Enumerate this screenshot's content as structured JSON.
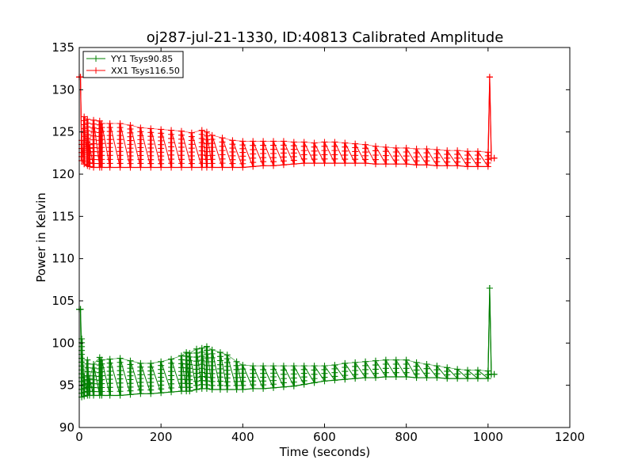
{
  "chart_data": {
    "type": "line",
    "title": "oj287-jul-21-1330, ID:40813 Calibrated Amplitude",
    "xlabel": "Time (seconds)",
    "ylabel": "Power in Kelvin",
    "xlim": [
      0,
      1200
    ],
    "ylim": [
      90,
      135
    ],
    "xticks": [
      "0",
      "200",
      "400",
      "600",
      "800",
      "1000",
      "1200"
    ],
    "yticks": [
      "90",
      "95",
      "100",
      "105",
      "110",
      "115",
      "120",
      "125",
      "130",
      "135"
    ],
    "grid": false,
    "legend_position": "top-left",
    "marker": "+",
    "series": [
      {
        "name": "YY1 Tsys90.85",
        "color": "#008000",
        "x": [
          0,
          3,
          6,
          12,
          20,
          25,
          35,
          50,
          55,
          75,
          100,
          125,
          150,
          175,
          200,
          225,
          250,
          262,
          270,
          287,
          300,
          312,
          325,
          345,
          362,
          385,
          400,
          425,
          450,
          475,
          500,
          525,
          550,
          575,
          600,
          625,
          650,
          675,
          700,
          725,
          750,
          775,
          800,
          825,
          850,
          875,
          900,
          925,
          950,
          975,
          1000,
          1004,
          1008,
          1015
        ],
        "low": [
          104,
          104,
          93.6,
          93.7,
          93.8,
          93.8,
          93.8,
          93.8,
          93.8,
          93.8,
          93.8,
          93.9,
          94,
          94,
          94.1,
          94.2,
          94.3,
          94.3,
          94.3,
          94.5,
          94.6,
          94.6,
          94.5,
          94.5,
          94.5,
          94.5,
          94.5,
          94.6,
          94.6,
          94.7,
          94.8,
          94.9,
          95.1,
          95.3,
          95.5,
          95.6,
          95.7,
          95.8,
          95.9,
          95.9,
          96,
          96,
          96,
          95.9,
          95.9,
          95.9,
          95.8,
          95.8,
          95.8,
          95.8,
          95.8,
          106.5,
          96.3,
          96.3
        ],
        "high": [
          104,
          104,
          100.5,
          96,
          98,
          95.8,
          97.5,
          98.3,
          98,
          98.1,
          98.2,
          97.9,
          97.6,
          97.6,
          97.8,
          98.1,
          98.5,
          98.9,
          98.8,
          99.3,
          99.4,
          99.6,
          99.2,
          98.9,
          98.6,
          97.8,
          97.4,
          97.3,
          97.3,
          97.3,
          97.3,
          97.3,
          97.3,
          97.3,
          97.3,
          97.4,
          97.6,
          97.7,
          97.8,
          97.9,
          98,
          98,
          98,
          97.7,
          97.5,
          97.3,
          97.1,
          96.9,
          96.8,
          96.8,
          96.7,
          106.5,
          96.3,
          96.3
        ]
      },
      {
        "name": "XX1 Tsys116.50",
        "color": "#ff0000",
        "x": [
          0,
          3,
          6,
          12,
          20,
          25,
          35,
          50,
          55,
          75,
          100,
          125,
          150,
          175,
          200,
          225,
          250,
          275,
          300,
          312,
          325,
          350,
          375,
          400,
          425,
          450,
          475,
          500,
          525,
          550,
          575,
          600,
          625,
          650,
          675,
          700,
          725,
          750,
          775,
          800,
          825,
          850,
          875,
          900,
          925,
          950,
          975,
          1000,
          1004,
          1008,
          1015
        ],
        "low": [
          131.5,
          131.5,
          121.6,
          121.2,
          121,
          120.9,
          120.8,
          120.8,
          120.8,
          120.8,
          120.8,
          120.8,
          120.8,
          120.8,
          120.8,
          120.8,
          120.8,
          120.8,
          120.8,
          120.8,
          120.8,
          120.8,
          120.8,
          120.8,
          120.9,
          121,
          121,
          121.1,
          121.2,
          121.3,
          121.3,
          121.3,
          121.3,
          121.3,
          121.3,
          121.3,
          121.2,
          121.2,
          121.2,
          121.2,
          121.1,
          121.1,
          121,
          121,
          121,
          120.9,
          120.9,
          120.9,
          131.5,
          121.9,
          121.9
        ],
        "high": [
          131.5,
          131.5,
          124,
          126.8,
          126.5,
          123.5,
          126.4,
          126.3,
          126,
          126,
          126,
          125.8,
          125.5,
          125.4,
          125.3,
          125.2,
          125.1,
          124.9,
          125.2,
          125,
          124.6,
          124.3,
          124,
          123.9,
          123.9,
          123.9,
          123.9,
          123.9,
          123.8,
          123.8,
          123.7,
          123.8,
          123.8,
          123.7,
          123.6,
          123.5,
          123.3,
          123.2,
          123.1,
          123.1,
          123,
          123,
          122.9,
          122.8,
          122.8,
          122.7,
          122.7,
          122.6,
          131.5,
          121.9,
          121.9
        ]
      }
    ]
  }
}
